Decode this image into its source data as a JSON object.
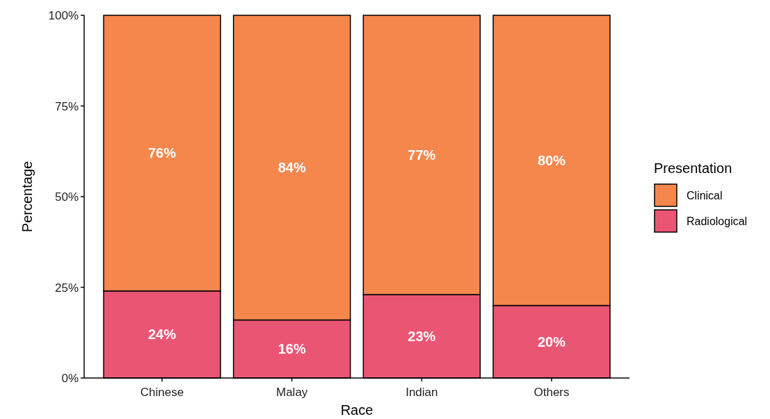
{
  "chart_data": {
    "type": "bar",
    "stacked": true,
    "xlabel": "Race",
    "ylabel": "Percentage",
    "legend_title": "Presentation",
    "legend": "right",
    "grid": false,
    "categories": [
      "Chinese",
      "Malay",
      "Indian",
      "Others"
    ],
    "ylim": [
      0,
      100
    ],
    "yticks": [
      {
        "value": 0,
        "label": "0%"
      },
      {
        "value": 25,
        "label": "25%"
      },
      {
        "value": 50,
        "label": "50%"
      },
      {
        "value": 75,
        "label": "75%"
      },
      {
        "value": 100,
        "label": "100%"
      }
    ],
    "series": [
      {
        "name": "Radiological",
        "color": "#eb5574",
        "values": [
          24,
          16,
          23,
          20
        ],
        "value_labels": [
          "24%",
          "16%",
          "23%",
          "20%"
        ]
      },
      {
        "name": "Clinical",
        "color": "#f5874d",
        "values": [
          76,
          84,
          77,
          80
        ],
        "value_labels": [
          "76%",
          "84%",
          "77%",
          "80%"
        ]
      }
    ]
  }
}
